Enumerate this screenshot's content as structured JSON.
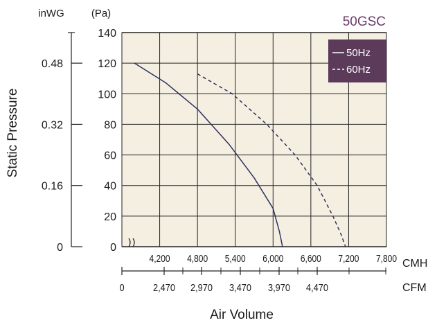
{
  "chart_data": {
    "type": "line",
    "title": "50GSC",
    "xlabel": "Air Volume",
    "ylabel": "Static Pressure",
    "left_axis": {
      "unit": "inWG",
      "ticks": [
        "0",
        "0.16",
        "0.32",
        "0.48"
      ],
      "tick_pa": [
        0,
        40,
        80,
        120
      ]
    },
    "pa_axis": {
      "unit": "(Pa)",
      "ticks": [
        "0",
        "20",
        "40",
        "60",
        "80",
        "100",
        "120",
        "140"
      ],
      "ylim": [
        0,
        140
      ]
    },
    "cmh_axis": {
      "unit": "CMH",
      "ticks": [
        "4,200",
        "4,800",
        "5,400",
        "6,000",
        "6,600",
        "7,200",
        "7,800"
      ],
      "tick_values": [
        4200,
        4800,
        5400,
        6000,
        6600,
        7200,
        7800
      ],
      "xlim": [
        3600,
        7800
      ],
      "axis_break": true
    },
    "cfm_axis": {
      "unit": "CFM",
      "ticks": [
        "0",
        "2,470",
        "2,970",
        "3,470",
        "3,970",
        "4,470"
      ]
    },
    "legend": {
      "placement": "top-right",
      "background": "#5b3a5a",
      "entries": [
        "50Hz",
        "60Hz"
      ]
    },
    "colors": {
      "title": "#6b3a6b",
      "series_50hz": "#2e3160",
      "series_60hz": "#2e3160",
      "grid": "#222222",
      "plot_background": "#f4efe1"
    },
    "series": [
      {
        "name": "50Hz",
        "style": "solid",
        "x": [
          3800,
          4300,
          4800,
          5300,
          5700,
          6000,
          6100,
          6150,
          6120
        ],
        "y": [
          120,
          107,
          90,
          67,
          45,
          25,
          10,
          0,
          -2
        ]
      },
      {
        "name": "60Hz",
        "style": "dashed",
        "x": [
          4800,
          5350,
          5900,
          6350,
          6700,
          6950,
          7080,
          7150,
          7100
        ],
        "y": [
          113,
          100,
          80,
          60,
          40,
          20,
          8,
          0,
          -2
        ]
      }
    ]
  }
}
